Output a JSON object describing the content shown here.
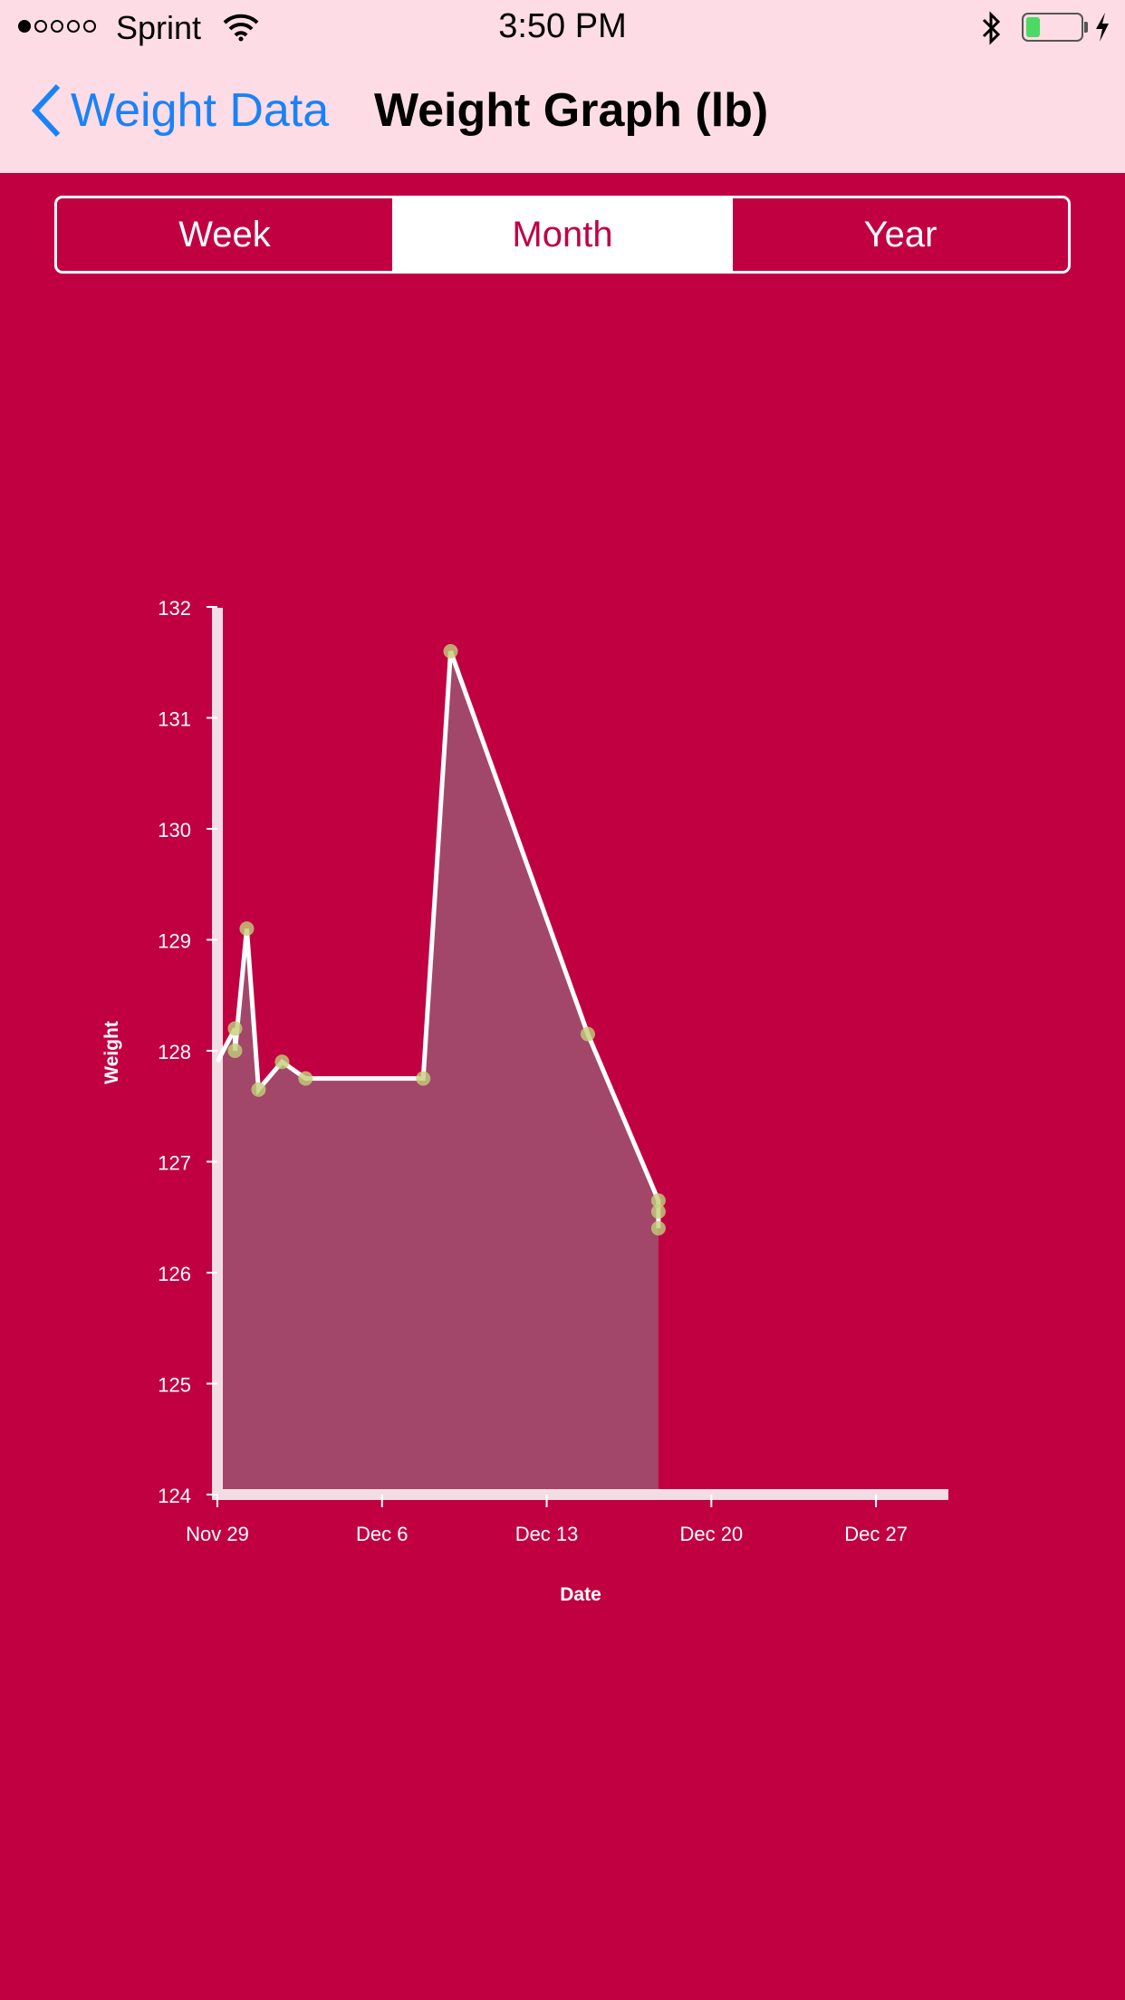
{
  "status_bar": {
    "carrier": "Sprint",
    "time": "3:50 PM",
    "signal_bars_filled": 1,
    "signal_bars_total": 5,
    "battery_level": 0.25
  },
  "nav": {
    "back_label": "Weight Data",
    "title": "Weight Graph (lb)"
  },
  "segments": {
    "options": [
      "Week",
      "Month",
      "Year"
    ],
    "selected": "Month"
  },
  "colors": {
    "background": "#c10042",
    "top_bar": "#fddce5",
    "link": "#1a82f7",
    "marker": "#c2cf7a",
    "area_fill": "#a3476a"
  },
  "chart_data": {
    "type": "area",
    "title": "",
    "xlabel": "Date",
    "ylabel": "Weight",
    "ylim": [
      124,
      132
    ],
    "yticks": [
      124,
      125,
      126,
      127,
      128,
      129,
      130,
      131,
      132
    ],
    "xlim": [
      "Nov 29",
      "Dec 30"
    ],
    "xticks": [
      "Nov 29",
      "Dec 6",
      "Dec 13",
      "Dec 20",
      "Dec 27"
    ],
    "points": [
      {
        "x": "Nov 29",
        "y": 127.9,
        "marker": false
      },
      {
        "x": "Nov 29 18:00",
        "y": 128.2
      },
      {
        "x": "Nov 29 18:00",
        "y": 128.0
      },
      {
        "x": "Nov 30 06:00",
        "y": 129.1
      },
      {
        "x": "Nov 30 18:00",
        "y": 127.65
      },
      {
        "x": "Dec 1 18:00",
        "y": 127.9
      },
      {
        "x": "Dec 2 18:00",
        "y": 127.75
      },
      {
        "x": "Dec 7 18:00",
        "y": 127.75
      },
      {
        "x": "Dec 8 22:00",
        "y": 131.6
      },
      {
        "x": "Dec 14 18:00",
        "y": 128.15
      },
      {
        "x": "Dec 17 18:00",
        "y": 126.65
      },
      {
        "x": "Dec 17 18:00",
        "y": 126.55
      },
      {
        "x": "Dec 17 18:00",
        "y": 126.4
      }
    ],
    "grid": false,
    "legend": "none"
  }
}
